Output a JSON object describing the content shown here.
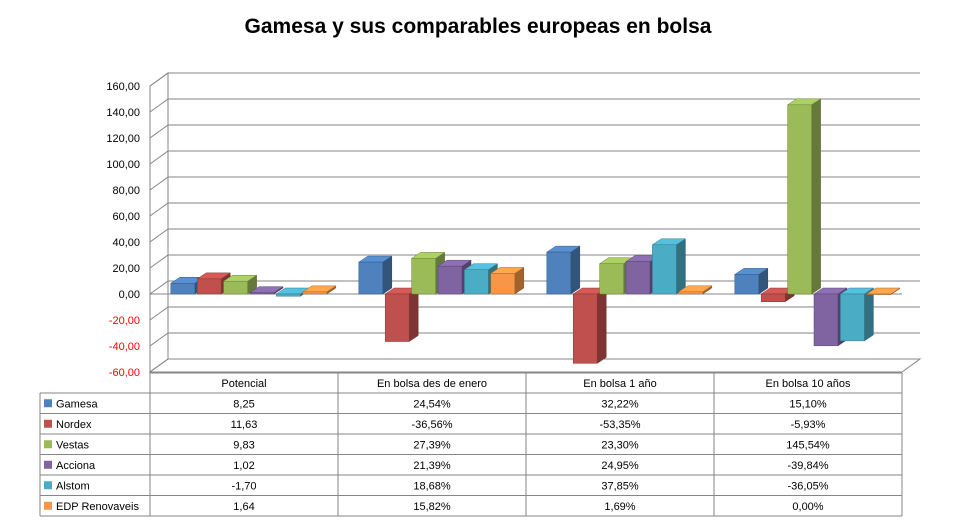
{
  "chart_data": {
    "type": "bar",
    "title": "Gamesa y sus comparables europeas en bolsa",
    "categories": [
      "Potencial",
      "En bolsa des de enero",
      "En bolsa 1 año",
      "En bolsa 10 años"
    ],
    "ylim": [
      -60,
      160
    ],
    "ytick_step": 20,
    "yticks": [
      "-60,00",
      "-40,00",
      "-20,00",
      "0,00",
      "20,00",
      "40,00",
      "60,00",
      "80,00",
      "100,00",
      "120,00",
      "140,00",
      "160,00"
    ],
    "negative_tick_color": "#FF0000",
    "grid": true,
    "data_table": true,
    "series": [
      {
        "name": "Gamesa",
        "color": "#4F81BD",
        "values": [
          8.25,
          24.54,
          32.22,
          15.1
        ],
        "labels": [
          "8,25",
          "24,54%",
          "32,22%",
          "15,10%"
        ]
      },
      {
        "name": "Nordex",
        "color": "#C0504D",
        "values": [
          11.63,
          -36.56,
          -53.35,
          -5.93
        ],
        "labels": [
          "11,63",
          "-36,56%",
          "-53,35%",
          "-5,93%"
        ]
      },
      {
        "name": "Vestas",
        "color": "#9BBB59",
        "values": [
          9.83,
          27.39,
          23.3,
          145.54
        ],
        "labels": [
          "9,83",
          "27,39%",
          "23,30%",
          "145,54%"
        ]
      },
      {
        "name": "Acciona",
        "color": "#8064A2",
        "values": [
          1.02,
          21.39,
          24.95,
          -39.84
        ],
        "labels": [
          "1,02",
          "21,39%",
          "24,95%",
          "-39,84%"
        ]
      },
      {
        "name": "Alstom",
        "color": "#4BACC6",
        "values": [
          -1.7,
          18.68,
          37.85,
          -36.05
        ],
        "labels": [
          "-1,70",
          "18,68%",
          "37,85%",
          "-36,05%"
        ]
      },
      {
        "name": "EDP Renovaveis",
        "color": "#F79646",
        "values": [
          1.64,
          15.82,
          1.69,
          0.0
        ],
        "labels": [
          "1,64",
          "15,82%",
          "1,69%",
          "0,00%"
        ]
      }
    ]
  }
}
